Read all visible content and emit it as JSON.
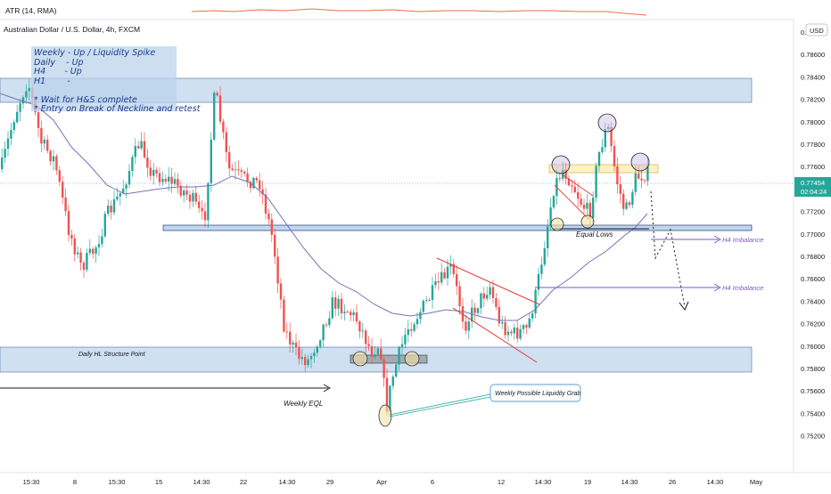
{
  "window": {
    "indicator_label": "ATR (14, RMA)",
    "symbol_title": "Australian Dollar / U.S. Dollar, 4h, FXCM"
  },
  "price_axis": {
    "currency_button": "USD",
    "ticks": [
      "0.78800",
      "0.78600",
      "0.78400",
      "0.78200",
      "0.78000",
      "0.77800",
      "0.77600",
      "0.77400",
      "0.77200",
      "0.77000",
      "0.76800",
      "0.76600",
      "0.76400",
      "0.76200",
      "0.76000",
      "0.75800",
      "0.75600",
      "0.75400",
      "0.75200"
    ],
    "last_price": "0.77454",
    "countdown": "02:04:24"
  },
  "time_axis": {
    "ticks": [
      "15:30",
      "8",
      "15:30",
      "15",
      "14:30",
      "22",
      "14:30",
      "29",
      "Apr",
      "6",
      "12",
      "14:30",
      "19",
      "14:30",
      "26",
      "14:30",
      "May"
    ]
  },
  "notes": {
    "lines": [
      "Weekly - Up / Liquidity Spike",
      "Daily    - Up",
      "H4       - Up",
      "H1        -",
      "",
      "* Wait for H&S complete",
      "* Entry on Break of Neckline and retest"
    ]
  },
  "annotations": {
    "daily_hl": "Daily HL Structure Point",
    "weekly_eql": "Weekly EQL",
    "equal_lows": "Equal Lows",
    "h4_imbalance_1": "H4 Imbalance",
    "h4_imbalance_2": "H4 Imbalance",
    "weekly_liquidity": "Weekly Possible Liquidity Grab"
  },
  "colors": {
    "bull": "#26a69a",
    "bear": "#ef5350",
    "zone": "#bbd3eb",
    "ma": "#7b6fb8",
    "atr": "#e8704a",
    "channel": "#e53935",
    "imbalance": "#7e57c2"
  }
}
